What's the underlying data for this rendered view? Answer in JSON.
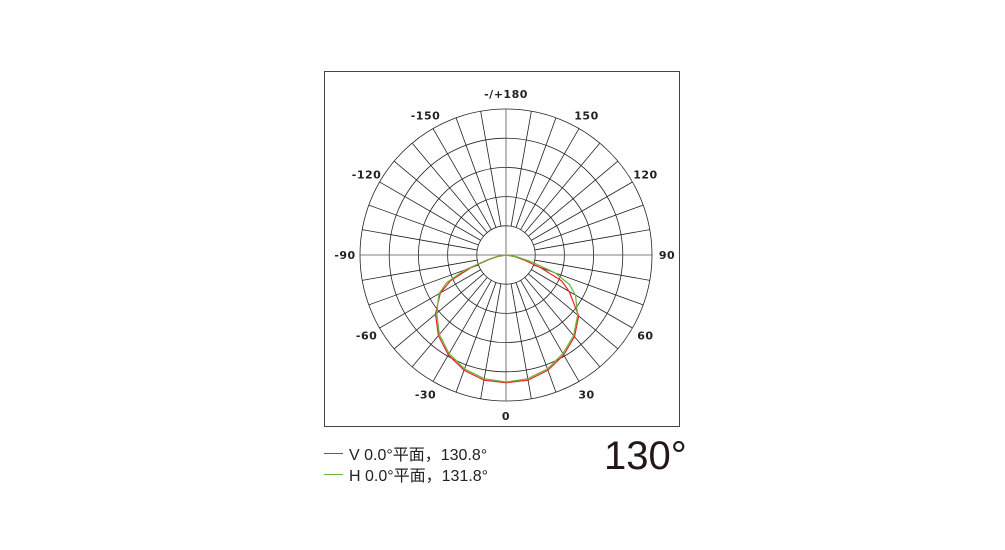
{
  "chart_data": {
    "type": "polar",
    "angle_ticks": [
      {
        "angle": 0,
        "label": "0"
      },
      {
        "angle": 30,
        "label": "30"
      },
      {
        "angle": 60,
        "label": "60"
      },
      {
        "angle": 90,
        "label": "90"
      },
      {
        "angle": 120,
        "label": "120"
      },
      {
        "angle": 150,
        "label": "150"
      },
      {
        "angle": 180,
        "label": "-/+180"
      },
      {
        "angle": -150,
        "label": "-150"
      },
      {
        "angle": -120,
        "label": "-120"
      },
      {
        "angle": -90,
        "label": "-90"
      },
      {
        "angle": -60,
        "label": "-60"
      },
      {
        "angle": -30,
        "label": "-30"
      }
    ],
    "radial_rings": 5,
    "radial_range": [
      0,
      1
    ],
    "spoke_step_deg": 10,
    "grid": true,
    "legend_placement": "bottom-left",
    "series": [
      {
        "name": "V 0.0°平面，130.8°",
        "color": "#e8251f",
        "angles": [
          -90,
          -80,
          -75,
          -70,
          -65,
          -60,
          -50,
          -40,
          -30,
          -20,
          -10,
          0,
          10,
          20,
          30,
          40,
          50,
          60,
          65,
          70,
          75,
          80,
          90
        ],
        "values": [
          0,
          0.06,
          0.12,
          0.26,
          0.42,
          0.52,
          0.63,
          0.72,
          0.79,
          0.84,
          0.87,
          0.875,
          0.87,
          0.84,
          0.79,
          0.73,
          0.65,
          0.5,
          0.42,
          0.25,
          0.12,
          0.06,
          0
        ]
      },
      {
        "name": "H 0.0°平面，131.8°",
        "color": "#6db33f",
        "angles": [
          -90,
          -80,
          -75,
          -70,
          -65,
          -60,
          -50,
          -40,
          -30,
          -20,
          -10,
          0,
          10,
          20,
          30,
          40,
          50,
          60,
          65,
          70,
          75,
          80,
          90
        ],
        "values": [
          0,
          0.07,
          0.14,
          0.3,
          0.45,
          0.53,
          0.62,
          0.71,
          0.78,
          0.83,
          0.86,
          0.87,
          0.86,
          0.83,
          0.78,
          0.72,
          0.64,
          0.55,
          0.48,
          0.36,
          0.18,
          0.08,
          0
        ]
      }
    ]
  },
  "beam_angle": "130°"
}
